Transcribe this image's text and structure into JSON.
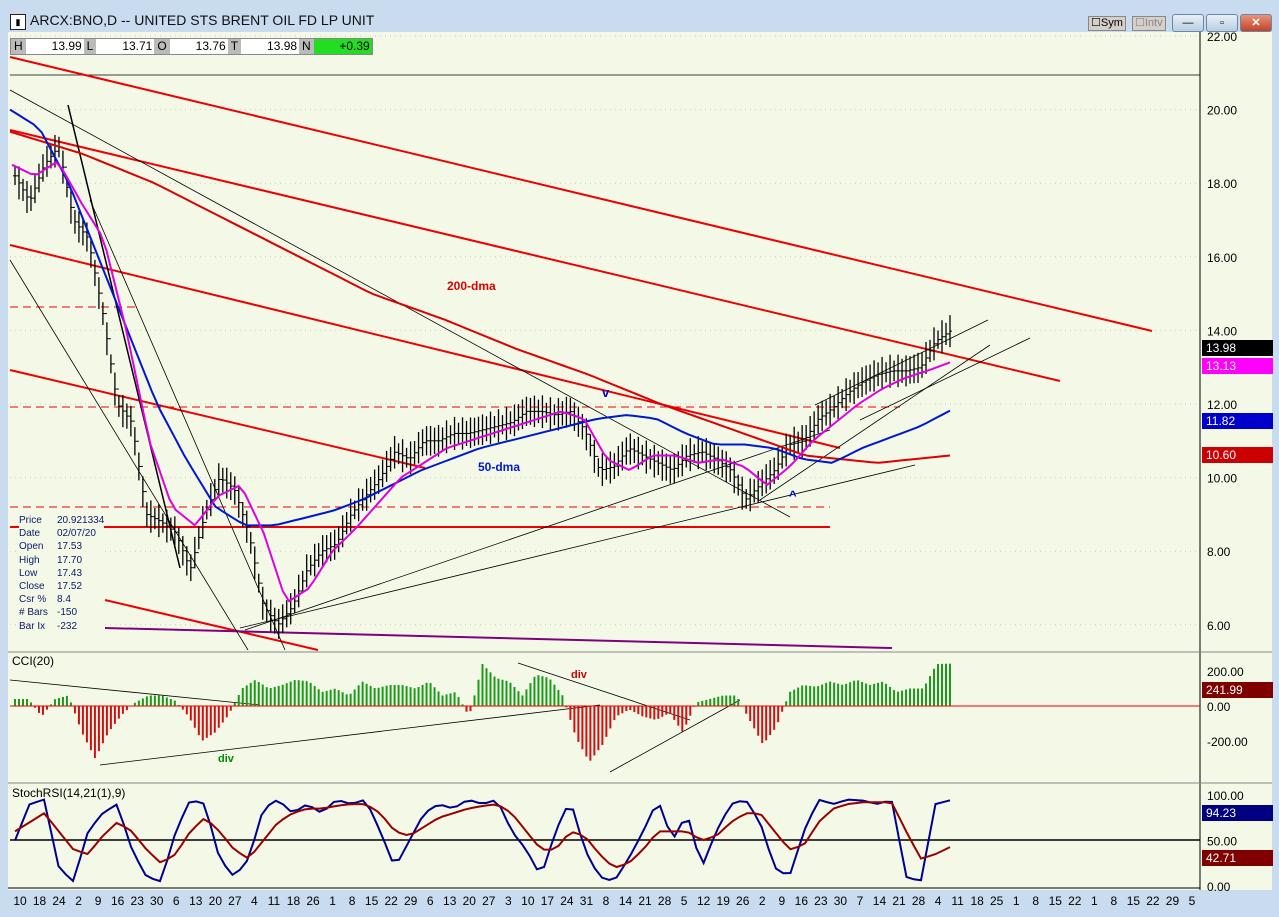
{
  "window": {
    "title": "ARCX:BNO,D -- UNITED STS BRENT OIL FD LP UNIT",
    "sym_label": "Sym",
    "intv_label": "Intv",
    "minimize": "—",
    "maximize": "▫",
    "close": "✕"
  },
  "ohlc_bar": {
    "h_label": "H",
    "h": "13.99",
    "l_label": "L",
    "l": "13.71",
    "o_label": "O",
    "o": "13.76",
    "t_label": "T",
    "t": "13.98",
    "n_label": "N",
    "n": "+0.39"
  },
  "info_box": [
    {
      "k": "Price",
      "v": "20.921334"
    },
    {
      "k": "Date",
      "v": "02/07/20"
    },
    {
      "k": "Open",
      "v": "17.53"
    },
    {
      "k": "High",
      "v": "17.70"
    },
    {
      "k": "Low",
      "v": "17.43"
    },
    {
      "k": "Close",
      "v": "17.52"
    },
    {
      "k": "Csr %",
      "v": "8.4"
    },
    {
      "k": "# Bars",
      "v": "-150"
    },
    {
      "k": "Bar Ix",
      "v": "-232"
    }
  ],
  "colors": {
    "price_tag": "#000000",
    "magenta_tag": "#ff00ff",
    "blue_tag": "#0000cc",
    "red_tag": "#cc0000",
    "cci_tag": "#800000",
    "stoch_k_tag": "#000080",
    "stoch_d_tag": "#800000",
    "bg": "#f4f9e7"
  },
  "chart_data": [
    {
      "type": "ohlc",
      "title": "ARCX:BNO,D",
      "ylim": [
        5.4,
        22
      ],
      "yticks": [
        "22.00",
        "20.00",
        "18.00",
        "16.00",
        "14.00",
        "12.00",
        "10.00",
        "8.00",
        "6.00"
      ],
      "closes": [
        18.2,
        17.5,
        18.5,
        19,
        17,
        16.5,
        14.5,
        12,
        11.5,
        9,
        8.8,
        8.5,
        7.5,
        9,
        10,
        9.7,
        8.5,
        6.5,
        6,
        6.5,
        7.5,
        8,
        8.2,
        9,
        9.5,
        10,
        10.7,
        10.5,
        11,
        11,
        11.2,
        11.2,
        11.3,
        11.4,
        11.5,
        11.8,
        11.8,
        11.7,
        11.8,
        11.3,
        10.2,
        10.3,
        10.8,
        10.6,
        10.4,
        10.2,
        10.6,
        10.7,
        10.5,
        10.2,
        9.4,
        9.8,
        10.2,
        10.9,
        11,
        11.6,
        11.9,
        12.3,
        12.6,
        12.8,
        12.9,
        12.9,
        13,
        13.7,
        13.98
      ],
      "ma_fast": [
        18.5,
        18.2,
        18.6,
        17.5,
        16.5,
        14,
        11,
        9.2,
        8.7,
        9.5,
        9.8,
        8.5,
        6.6,
        7,
        8,
        8.6,
        9.3,
        10,
        10.4,
        10.8,
        11,
        11.2,
        11.4,
        11.6,
        11.8,
        11.6,
        10.5,
        10.2,
        10.6,
        10.6,
        10.4,
        10.5,
        10.3,
        9.8,
        10.3,
        11,
        11.5,
        12,
        12.4,
        12.7,
        12.9,
        13.13
      ],
      "ma50": [
        20,
        19.5,
        18,
        16,
        14,
        12,
        10.5,
        9.2,
        8.7,
        8.7,
        8.9,
        9.1,
        9.4,
        9.8,
        10.2,
        10.5,
        10.8,
        11,
        11.2,
        11.4,
        11.6,
        11.7,
        11.6,
        11.2,
        10.9,
        10.9,
        10.8,
        10.5,
        10.4,
        10.8,
        11.1,
        11.4,
        11.82
      ],
      "ma200": [
        19.4,
        18.8,
        18,
        17,
        16,
        15,
        14.3,
        13.5,
        12.8,
        12,
        11.3,
        10.6,
        10.4,
        10.6
      ],
      "price_tags": [
        "13.98",
        "13.13",
        "11.82",
        "10.60"
      ],
      "annotations": [
        "200-dma",
        "50-dma",
        "v",
        "^"
      ]
    },
    {
      "type": "bar",
      "title": "CCI(20)",
      "ylim": [
        -330,
        260
      ],
      "yticks": [
        "200.00",
        "0.00",
        "-200.00"
      ],
      "last": "241.99",
      "annotations": [
        "div",
        "div"
      ],
      "values": [
        40,
        40,
        -60,
        40,
        60,
        -150,
        -300,
        -150,
        -50,
        20,
        60,
        60,
        30,
        -60,
        -200,
        -150,
        -50,
        100,
        150,
        100,
        120,
        150,
        140,
        80,
        100,
        60,
        140,
        100,
        120,
        120,
        100,
        140,
        60,
        80,
        -60,
        240,
        160,
        140,
        60,
        180,
        160,
        60,
        -180,
        -320,
        -220,
        -60,
        -20,
        -60,
        -80,
        -40,
        -150,
        20,
        40,
        60,
        60,
        -80,
        -220,
        -120,
        80,
        120,
        110,
        140,
        120,
        150,
        120,
        140,
        80,
        100,
        100,
        240,
        242
      ]
    },
    {
      "type": "line",
      "title": "StochRSI(14,21(1),9)",
      "ylim": [
        0,
        100
      ],
      "yticks": [
        "100.00",
        "50.00",
        "0.00"
      ],
      "last_k": "94.23",
      "last_d": "42.71",
      "k": [
        50,
        90,
        95,
        20,
        5,
        60,
        80,
        90,
        40,
        10,
        5,
        60,
        95,
        90,
        30,
        10,
        30,
        85,
        95,
        80,
        90,
        80,
        95,
        90,
        95,
        60,
        20,
        50,
        80,
        90,
        85,
        95,
        90,
        95,
        60,
        40,
        10,
        60,
        95,
        40,
        10,
        5,
        30,
        60,
        95,
        50,
        80,
        20,
        60,
        90,
        95,
        70,
        20,
        10,
        60,
        95,
        90,
        95,
        94,
        90,
        95,
        10,
        5,
        90,
        94.23
      ],
      "d": [
        60,
        70,
        80,
        60,
        40,
        35,
        55,
        70,
        60,
        40,
        25,
        35,
        60,
        75,
        60,
        40,
        30,
        50,
        70,
        80,
        85,
        85,
        88,
        90,
        90,
        80,
        60,
        55,
        65,
        75,
        80,
        85,
        88,
        90,
        80,
        60,
        40,
        40,
        60,
        55,
        35,
        20,
        25,
        40,
        60,
        60,
        60,
        50,
        55,
        70,
        80,
        80,
        60,
        40,
        45,
        70,
        85,
        90,
        92,
        92,
        92,
        60,
        30,
        35,
        42.71
      ]
    },
    {
      "type": "axis",
      "xticks": [
        "10",
        "18",
        "24",
        "2",
        "9",
        "16",
        "23",
        "30",
        "6",
        "13",
        "20",
        "27",
        "4",
        "11",
        "18",
        "26",
        "1",
        "8",
        "15",
        "22",
        "29",
        "6",
        "13",
        "20",
        "27",
        "3",
        "10",
        "17",
        "24",
        "31",
        "8",
        "14",
        "21",
        "28",
        "5",
        "12",
        "19",
        "26",
        "2",
        "9",
        "16",
        "23",
        "30",
        "7",
        "14",
        "21",
        "28",
        "4",
        "11",
        "18",
        "25",
        "1",
        "8",
        "15",
        "22",
        "1",
        "8",
        "15",
        "22",
        "29",
        "5"
      ]
    }
  ]
}
